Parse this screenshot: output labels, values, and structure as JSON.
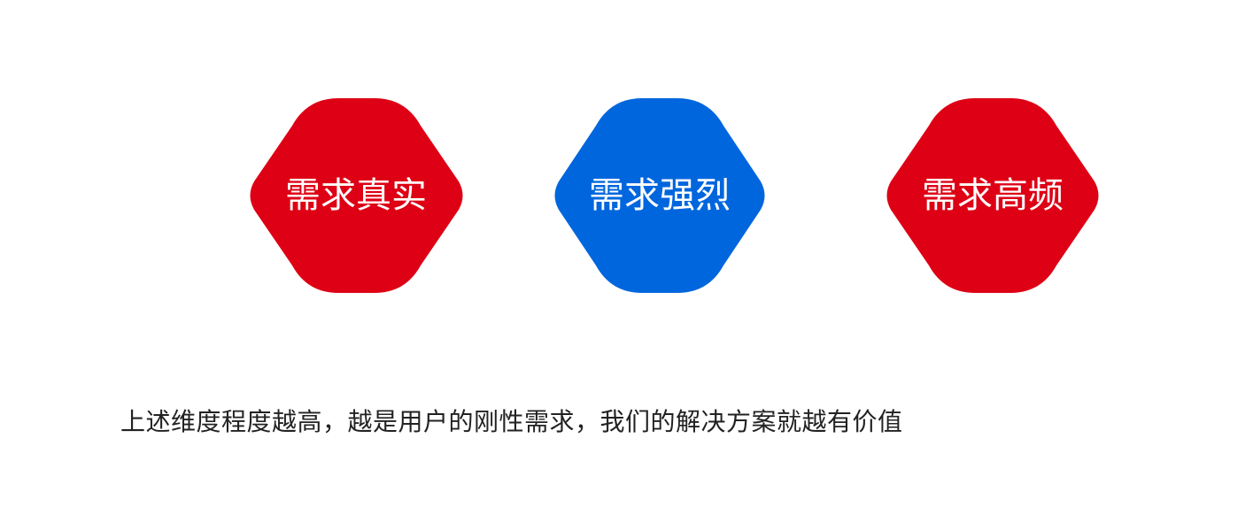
{
  "hexagons": [
    {
      "label": "需求真实",
      "color": "#DE0014"
    },
    {
      "label": "需求强烈",
      "color": "#0066DD"
    },
    {
      "label": "需求高频",
      "color": "#DE0014"
    }
  ],
  "caption": "上述维度程度越高，越是用户的刚性需求，我们的解决方案就越有价值"
}
